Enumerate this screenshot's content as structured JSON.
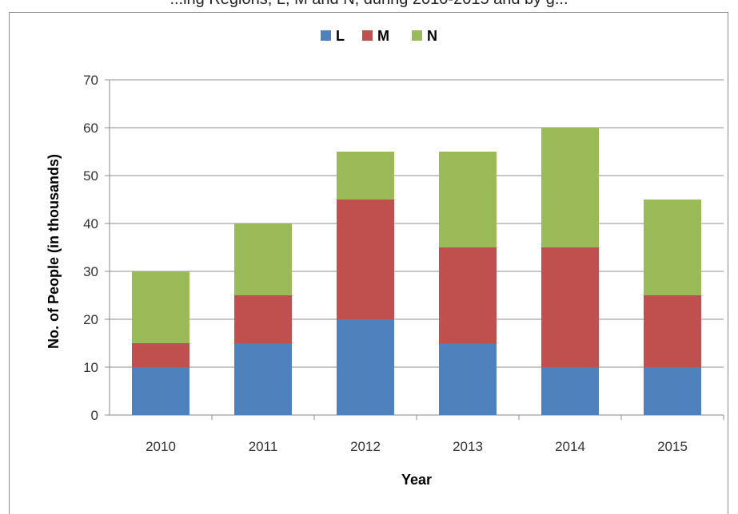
{
  "header": {
    "cut_title": "...ing Regions, L, M and N, during 2010-2015 and by g..."
  },
  "chart_data": {
    "type": "bar",
    "stacked": true,
    "categories": [
      "2010",
      "2011",
      "2012",
      "2013",
      "2014",
      "2015"
    ],
    "series": [
      {
        "name": "L",
        "color": "#4f81bd",
        "values": [
          10,
          15,
          20,
          15,
          10,
          10
        ]
      },
      {
        "name": "M",
        "color": "#c0504d",
        "values": [
          5,
          10,
          25,
          20,
          25,
          15
        ]
      },
      {
        "name": "N",
        "color": "#9bbb59",
        "values": [
          15,
          15,
          10,
          20,
          25,
          20
        ]
      }
    ],
    "xlabel": "Year",
    "ylabel": "No. of People (in thousands)",
    "ylim": [
      0,
      70
    ],
    "yticks": [
      0,
      10,
      20,
      30,
      40,
      50,
      60,
      70
    ],
    "grid": true,
    "legend": "top"
  }
}
